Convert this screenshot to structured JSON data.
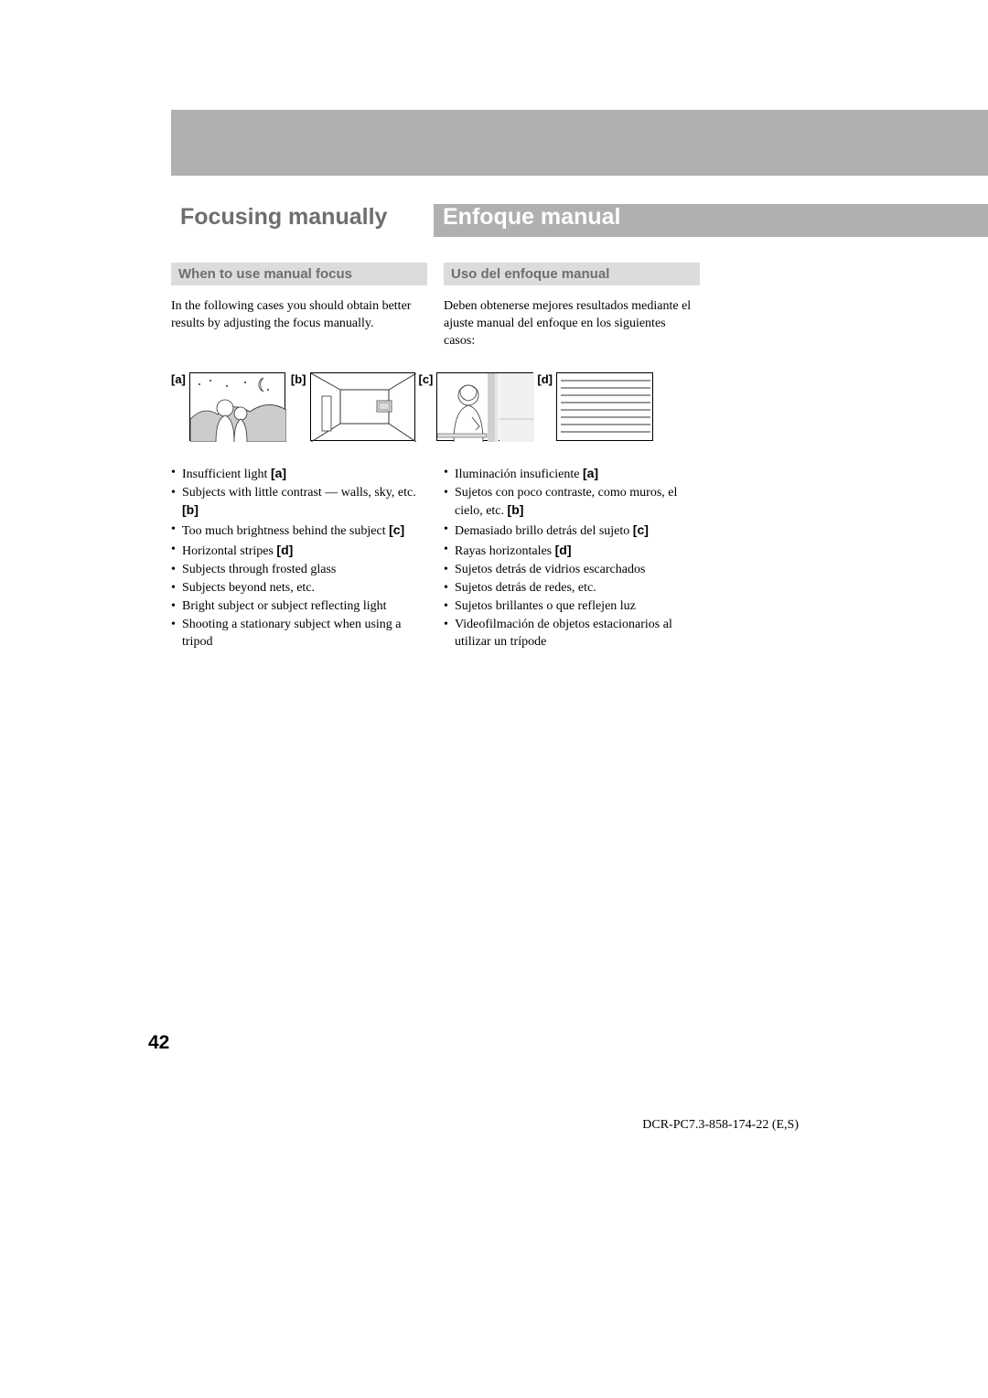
{
  "titles": {
    "left": "Focusing manually",
    "right": "Enfoque manual"
  },
  "subheads": {
    "left": "When to use manual focus",
    "right": "Uso del enfoque manual"
  },
  "intro": {
    "left": "In the following cases you should obtain better results by adjusting the focus manually.",
    "right": "Deben obtenerse mejores resultados mediante el ajuste manual del enfoque en los siguientes casos:"
  },
  "labels": {
    "a": "[a]",
    "b": "[b]",
    "c": "[c]",
    "d": "[d]"
  },
  "bullets_en": [
    {
      "text": "Insufficient light ",
      "tag": "[a]"
    },
    {
      "text": "Subjects with little contrast — walls, sky, etc. ",
      "tag": "[b]"
    },
    {
      "text": "Too much brightness behind the subject ",
      "tag": "[c]"
    },
    {
      "text": "Horizontal stripes ",
      "tag": "[d]"
    },
    {
      "text": "Subjects through frosted glass",
      "tag": ""
    },
    {
      "text": "Subjects beyond nets, etc.",
      "tag": ""
    },
    {
      "text": "Bright subject or subject reflecting light",
      "tag": ""
    },
    {
      "text": "Shooting a stationary subject when using a tripod",
      "tag": ""
    }
  ],
  "bullets_es": [
    {
      "text": "Iluminación insuficiente ",
      "tag": "[a]"
    },
    {
      "text": "Sujetos con poco contraste, como muros, el cielo, etc. ",
      "tag": "[b]"
    },
    {
      "text": "Demasiado brillo detrás del sujeto ",
      "tag": "[c]"
    },
    {
      "text": "Rayas horizontales ",
      "tag": "[d]"
    },
    {
      "text": "Sujetos detrás de vidrios escarchados",
      "tag": ""
    },
    {
      "text": "Sujetos detrás de redes, etc.",
      "tag": ""
    },
    {
      "text": "Sujetos brillantes o que reflejen luz",
      "tag": ""
    },
    {
      "text": "Videofilmación de objetos estacionarios al utilizar un trípode",
      "tag": ""
    }
  ],
  "page_number": "42",
  "footer": "DCR-PC7.3-858-174-22 (E,S)"
}
